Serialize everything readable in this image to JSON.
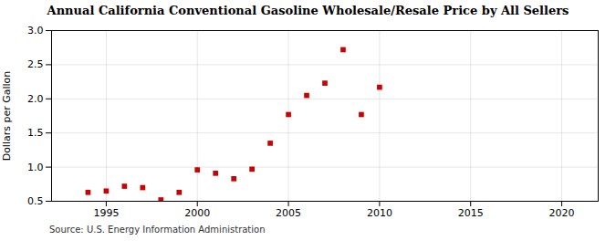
{
  "chart_data": {
    "type": "scatter",
    "title": "Annual California Conventional Gasoline Wholesale/Resale Price by All Sellers",
    "ylabel": "Dollars per Gallon",
    "source": "Source: U.S. Energy Information Administration",
    "x": [
      1994,
      1995,
      1996,
      1997,
      1998,
      1999,
      2000,
      2001,
      2002,
      2003,
      2004,
      2005,
      2006,
      2007,
      2008,
      2009,
      2010
    ],
    "values": [
      0.63,
      0.65,
      0.72,
      0.7,
      0.52,
      0.63,
      0.96,
      0.91,
      0.83,
      0.97,
      1.35,
      1.77,
      2.05,
      2.23,
      2.72,
      1.77,
      2.17
    ],
    "color": "#cc0000",
    "marker": "square",
    "xlim": [
      1992,
      2022
    ],
    "ylim": [
      0.5,
      3.0
    ],
    "xticks": [
      1995,
      2000,
      2005,
      2010,
      2015,
      2020
    ],
    "yticks": [
      0.5,
      {
        "value": 1.0,
        "label": "1.0"
      },
      1.5,
      {
        "value": 2.0,
        "label": "2.0"
      },
      2.5,
      {
        "value": 3.0,
        "label": "3.0"
      }
    ],
    "grid": true
  }
}
